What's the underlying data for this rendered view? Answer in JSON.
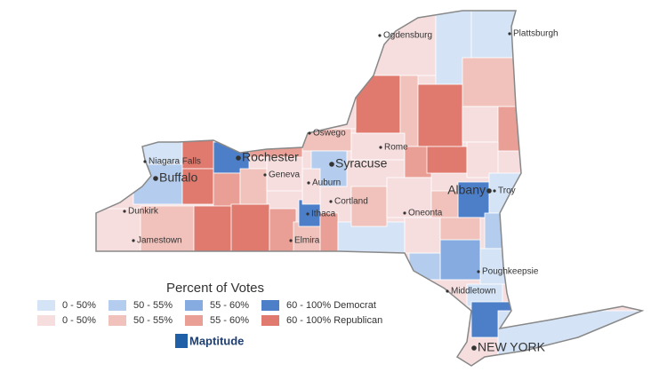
{
  "map": {
    "cities": [
      "Plattsburgh",
      "Ogdensburg",
      "Oswego",
      "Rome",
      "Rochester",
      "Syracuse",
      "Niagara Falls",
      "Buffalo",
      "Geneva",
      "Auburn",
      "Albany",
      "Troy",
      "Cortland",
      "Ithaca",
      "Oneonta",
      "Dunkirk",
      "Jamestown",
      "Elmira",
      "Poughkeepsie",
      "Middletown",
      "NEW YORK"
    ],
    "legend": {
      "title": "Percent of Votes",
      "items": [
        {
          "label": "0 - 50%",
          "color": "#d4e3f5"
        },
        {
          "label": "0 - 50%",
          "color": "#f7dede"
        },
        {
          "label": "50 - 55%",
          "color": "#b4cdee"
        },
        {
          "label": "50 - 55%",
          "color": "#f0c2bb"
        },
        {
          "label": "55 - 60%",
          "color": "#86abe0"
        },
        {
          "label": "55 - 60%",
          "color": "#e99f95"
        },
        {
          "label": "60 - 100% Democrat",
          "color": "#4d7fc9"
        },
        {
          "label": "60 - 100% Republican",
          "color": "#e07a6e"
        }
      ]
    },
    "logo": "Maptitude"
  }
}
